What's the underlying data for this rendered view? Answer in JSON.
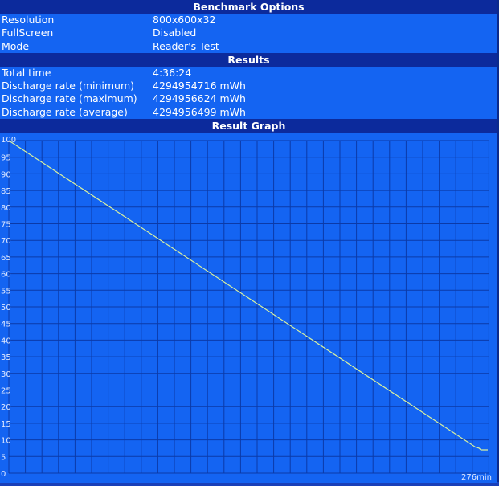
{
  "sections": {
    "options": "Benchmark Options",
    "results": "Results",
    "graph": "Result Graph"
  },
  "options": [
    {
      "k": "Resolution",
      "v": "800x600x32"
    },
    {
      "k": "FullScreen",
      "v": "Disabled"
    },
    {
      "k": "Mode",
      "v": "Reader's Test"
    }
  ],
  "results": [
    {
      "k": "Total time",
      "v": "4:36:24"
    },
    {
      "k": "Discharge rate (minimum)",
      "v": "4294954716 mWh"
    },
    {
      "k": "Discharge rate (maximum)",
      "v": "4294956624 mWh"
    },
    {
      "k": "Discharge rate (average)",
      "v": "4294956499 mWh"
    }
  ],
  "colors": {
    "header": "#0c2a9c",
    "background": "#1464f2",
    "grid": "#0b3aa8",
    "line": "#d8f0a0"
  },
  "chart_data": {
    "type": "line",
    "ylabel": "",
    "xlabel": "",
    "ylim": [
      0,
      100
    ],
    "xlim": [
      0,
      276
    ],
    "yticks": [
      "0",
      "5",
      "10",
      "15",
      "20",
      "25",
      "30",
      "35",
      "40",
      "45",
      "50",
      "55",
      "60",
      "65",
      "70",
      "75",
      "80",
      "85",
      "90",
      "95",
      "100"
    ],
    "xend_label": "276min",
    "grid": true,
    "x": [
      0,
      269,
      271,
      272,
      276
    ],
    "y": [
      100,
      7.8,
      7.5,
      7,
      7
    ]
  }
}
